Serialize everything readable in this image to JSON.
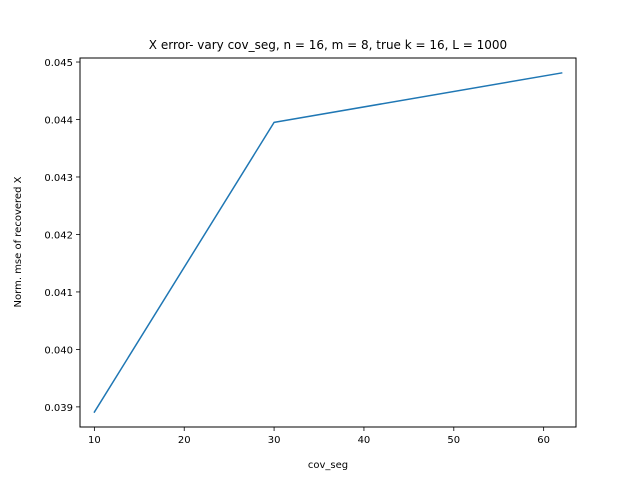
{
  "chart_data": {
    "type": "line",
    "title": "X error- vary cov_seg, n = 16, m = 8, true k = 16, L = 1000",
    "xlabel": "cov_seg",
    "ylabel": "Norm. mse of recovered X",
    "xlim": [
      8.4,
      63.6
    ],
    "ylim": [
      0.03865,
      0.04507
    ],
    "xticks": [
      10,
      20,
      30,
      40,
      50,
      60
    ],
    "xtick_labels": [
      "10",
      "20",
      "30",
      "40",
      "50",
      "60"
    ],
    "yticks": [
      0.039,
      0.04,
      0.041,
      0.042,
      0.043,
      0.044,
      0.045
    ],
    "ytick_labels": [
      "0.039",
      "0.040",
      "0.041",
      "0.042",
      "0.043",
      "0.044",
      "0.045"
    ],
    "grid": false,
    "series": [
      {
        "color": "#1f77b4",
        "x": [
          10,
          30,
          62
        ],
        "y": [
          0.03891,
          0.04395,
          0.04481
        ]
      }
    ]
  }
}
